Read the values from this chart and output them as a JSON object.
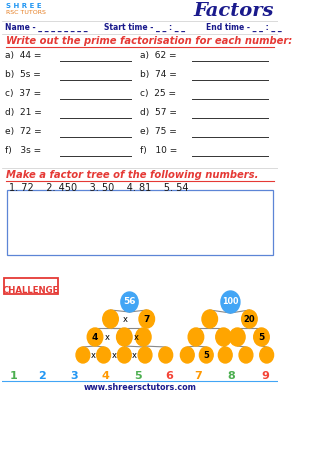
{
  "title": "Factors",
  "bg_color": "#ffffff",
  "header_name": "Name - _ _ _ _ _ _ _ _",
  "header_start": "Start time - _ _ : _ _",
  "header_end": "End time - _ _ : _ _",
  "section1_title": "Write out the prime factorisation for each number:",
  "section1_left": [
    "a)  44 = ",
    "b)  5s = ",
    "c)  37 = ",
    "d)  21 = ",
    "e)  72 = ",
    "f)   3s = "
  ],
  "section1_right": [
    "a)  62 = ",
    "b)  74 = ",
    "c)  25 = ",
    "d)  57 = ",
    "e)  75 = ",
    "f)   10 = "
  ],
  "section2_title": "Make a factor tree of the following numbers.",
  "section2_items": "1. 72    2. 450    3. 50    4. 81    5. 54",
  "challenge_text": "CHALLENGE",
  "footer": "www.shreersctutors.com",
  "bottom_nums": [
    "1",
    "2",
    "3",
    "4",
    "5",
    "6",
    "7",
    "8",
    "9"
  ],
  "bottom_num_colors": [
    "#4CAF50",
    "#2196F3",
    "#2196F3",
    "#FF9800",
    "#4CAF50",
    "#F44336",
    "#FF9800",
    "#4CAF50",
    "#F44336"
  ],
  "orange_color": "#FFA500",
  "blue_node_color": "#42A5F5",
  "line_color": "#888888",
  "red_color": "#E53935",
  "dark_blue": "#1a1a8c"
}
